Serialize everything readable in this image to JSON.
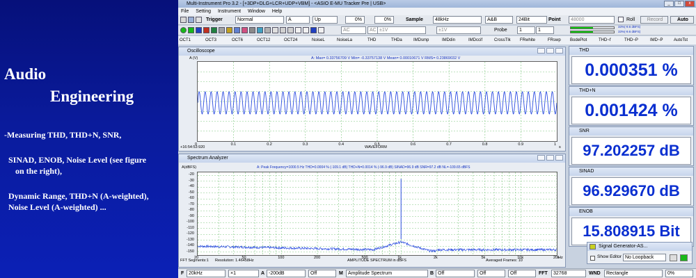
{
  "left_panel": {
    "heading1": "Audio",
    "heading2": "Engineering",
    "point1": "-Measuring THD, THD+N, SNR,",
    "point2a": "SINAD, ENOB, Noise Level (see figure",
    "point2b": "on the right),",
    "point3a": "Dynamic Range, THD+N (A-weighted),",
    "point3b": "Noise Level (A-weighted) ..."
  },
  "app": {
    "title": "Multi-Instrument Pro 3.2   -   [+3DP+DLG+LCR+UDP+VBM]   -   <ASIO E-MU Tracker Pre | USB>",
    "menu": [
      "File",
      "Setting",
      "Instrument",
      "Window",
      "Help"
    ],
    "toolbar1": {
      "trigger_label": "Trigger",
      "trigger_mode": "Normal",
      "trigger_channel": "A",
      "trigger_edge": "Up",
      "trigger_level": "0%",
      "pretrigger": "0%",
      "sample_label": "Sample",
      "sample_rate": "48kHz",
      "channels": "A&B",
      "bit_depth": "24Bit",
      "point_label": "Point",
      "point_value": "48000",
      "roll_label": "Roll",
      "record_label": "Record",
      "auto_label": "Auto"
    },
    "toolbar2": {
      "coupling_a": "AC",
      "coupling_b": "AC",
      "range_a": "±1V",
      "range_b": "±1V",
      "probe_label": "Probe",
      "probe_a": "1",
      "probe_b": "1",
      "level_a": "33%(-9.6 dBFS)",
      "level_b": "33%(-9.6 dBFS)"
    },
    "tabs": [
      "OCT1",
      "OCT3",
      "OCT6",
      "OCT12",
      "OCT24",
      "NoiseL",
      "NoiseLa",
      "THD",
      "THDa",
      "IMDsmp",
      "IMDdin",
      "IMDccif",
      "CrossTlk",
      "FRwhite",
      "FRswp",
      "BodePlot",
      "THD~f",
      "THD~P",
      "IMD~P",
      "AutoTst"
    ]
  },
  "oscilloscope": {
    "title": "Oscilloscope",
    "y_label": "A (V)",
    "stats": "A:  Max= 0.33756709  V   Min= -0.33757138  V   Mean= 0.00010671  V   RMS= 0.23869032  V",
    "x_ticks": [
      "0",
      "0.1",
      "0.2",
      "0.3",
      "0.4",
      "0.5",
      "0.6",
      "0.7",
      "0.8",
      "0.9",
      "1"
    ],
    "x_unit": "s",
    "x_title": "WAVEFORM",
    "time_origin": "+16:54:53:920",
    "color": "#2a4be0"
  },
  "spectrum": {
    "title": "Spectrum Analyzer",
    "y_label": "A(dBFS)",
    "stats": "A:  Peak Frequency=1000.5 Hz   THD=0.0004 % (-109.1 dB)   THD+N=0.0014 % (-96.9 dB)   SINAD=96.9 dB   SNR=97.2 dB   NL=-109.65 dBFS",
    "y_ticks": [
      "-20",
      "-30",
      "-40",
      "-50",
      "-60",
      "-70",
      "-80",
      "-90",
      "-100",
      "-110",
      "-120",
      "-130",
      "-140",
      "-150"
    ],
    "x_ticks": [
      "20",
      "50",
      "100",
      "200",
      "500",
      "1k",
      "2k",
      "5k",
      "10k",
      "20k"
    ],
    "x_unit": "Hz",
    "x_title": "AMPLITUDE SPECTRUM in dBFS",
    "fft_segments": "FFT Segments:1",
    "resolution": "Resolution: 1.46458Hz",
    "averaged": "Averaged Frames: 10",
    "color": "#2a4be0"
  },
  "meters": [
    {
      "title": "THD",
      "value": "0.000351 %"
    },
    {
      "title": "THD+N",
      "value": "0.001424 %"
    },
    {
      "title": "SNR",
      "value": "97.202257 dB"
    },
    {
      "title": "SINAD",
      "value": "96.929670 dB"
    },
    {
      "title": "ENOB",
      "value": "15.808915 Bit"
    }
  ],
  "signal_generator": {
    "title": "Signal Generator-AS...",
    "show_editor": "Show Editor",
    "loopback": "No Loopback"
  },
  "statusbar": {
    "f_label": "F",
    "freq_range": "20kHz",
    "zoom": "×1",
    "a_label": "A",
    "a_range": "-200dB",
    "a_off": "Off",
    "m_label": "M",
    "mode": "Amplitude Spectrum",
    "b_label": "B",
    "b_off": "Off",
    "off3": "Off",
    "off4": "Off",
    "fft_label": "FFT",
    "fft_size": "32768",
    "wnd_label": "WND",
    "window": "Rectangle",
    "overlap": "0%"
  }
}
